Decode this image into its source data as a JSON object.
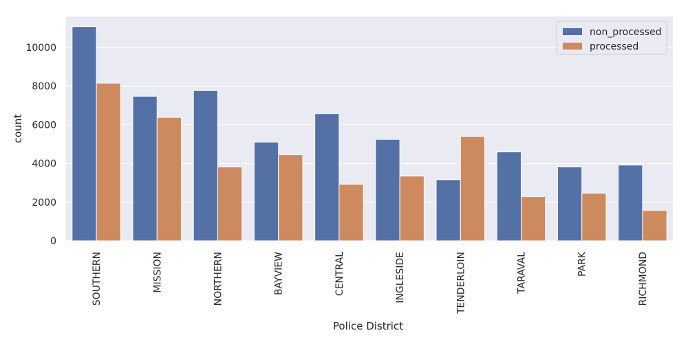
{
  "chart_data": {
    "type": "bar",
    "title": "",
    "xlabel": "Police District",
    "ylabel": "count",
    "ylim": [
      0,
      11600
    ],
    "yticks": [
      0,
      2000,
      4000,
      6000,
      8000,
      10000
    ],
    "grid": true,
    "legend_position": "top-right",
    "categories": [
      "SOUTHERN",
      "MISSION",
      "NORTHERN",
      "BAYVIEW",
      "CENTRAL",
      "INGLESIDE",
      "TENDERLOIN",
      "TARAVAL",
      "PARK",
      "RICHMOND"
    ],
    "series": [
      {
        "name": "non_processed",
        "color": "#5471a6",
        "values": [
          11080,
          7470,
          7780,
          5100,
          6570,
          5250,
          3150,
          4600,
          3820,
          3920
        ]
      },
      {
        "name": "processed",
        "color": "#ce8a5f",
        "values": [
          8150,
          6390,
          3820,
          4460,
          2920,
          3350,
          5400,
          2290,
          2460,
          1570
        ]
      }
    ],
    "background_color": "#eaeaf2",
    "grid_color": "#ffffff"
  }
}
